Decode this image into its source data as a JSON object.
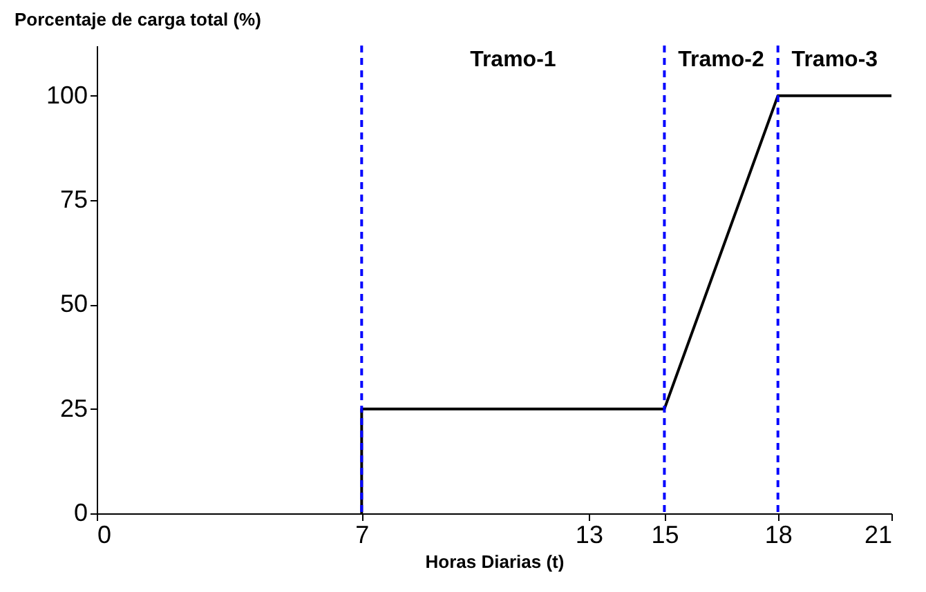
{
  "chart_data": {
    "type": "line",
    "xlabel": "Horas Diarias (t)",
    "ylabel": "Porcentaje de carga total (%)",
    "x": [
      7,
      7,
      15,
      18,
      21
    ],
    "series": [
      {
        "color": "#000000",
        "values": [
          0,
          25,
          25,
          100,
          100
        ]
      }
    ],
    "xlim": [
      0,
      21
    ],
    "xticks": [
      0,
      7,
      13,
      15,
      18,
      21
    ],
    "ylim": [
      0,
      112
    ],
    "yticks": [
      0,
      25,
      50,
      75,
      100
    ],
    "ref_lines": [
      {
        "axis": "x",
        "value": 7,
        "color": "#0000ff",
        "line_style": "dashed"
      },
      {
        "axis": "x",
        "value": 15,
        "color": "#0000ff",
        "line_style": "dashed"
      },
      {
        "axis": "x",
        "value": 18,
        "color": "#0000ff",
        "line_style": "dashed"
      }
    ],
    "annotations": [
      "Tramo-1",
      "Tramo-2",
      "Tramo-3"
    ]
  }
}
